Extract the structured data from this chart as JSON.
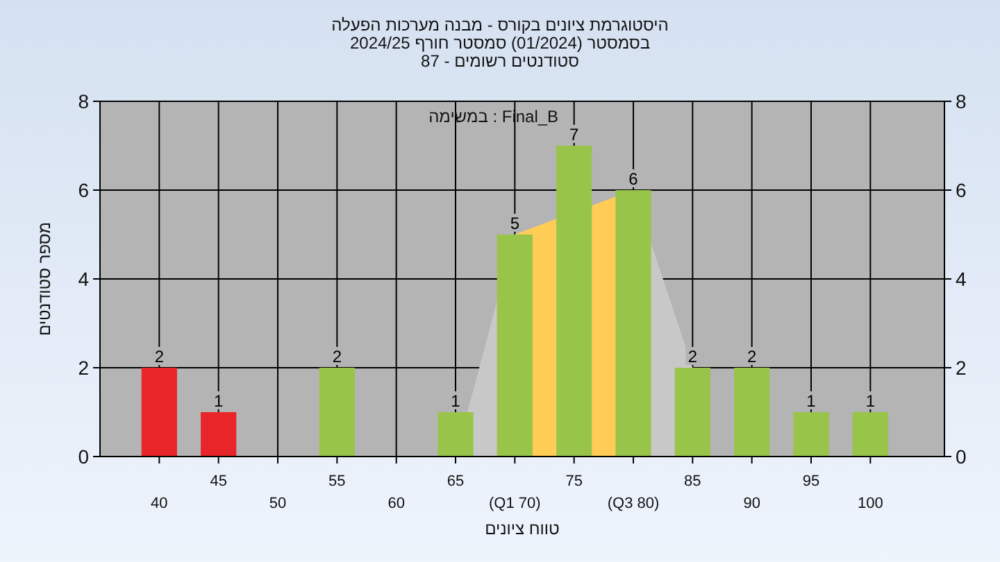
{
  "chart_data": {
    "type": "bar",
    "title": "היסטוגרמת ציונים בקורס - מבנה מערכות הפעלה",
    "subtitle": "בסמסטר  (01/2024)  סמסטר חורף 2024/25",
    "annotations": [
      "סטודנטים רשומים - 87",
      "Final_B : במשימה"
    ],
    "xlabel": "טווח ציונים",
    "ylabel": "מספר סטודנטים",
    "categories": [
      "40",
      "45",
      "50",
      "55",
      "60",
      "65",
      "(Q1 70)",
      "75",
      "(Q3 80)",
      "85",
      "90",
      "95",
      "100"
    ],
    "series": [
      {
        "type": "area",
        "color": "#c8c8c8",
        "values": [
          null,
          null,
          null,
          null,
          null,
          0,
          5,
          null,
          6,
          2,
          null,
          null,
          null
        ]
      },
      {
        "type": "area",
        "color": "#ffcc55",
        "values": [
          null,
          null,
          null,
          null,
          null,
          null,
          5,
          null,
          6,
          null,
          null,
          null,
          null
        ]
      },
      {
        "type": "bar",
        "colors": [
          "#e8262a",
          "#e8262a",
          "#99c44a",
          "#99c44a",
          "#99c44a",
          "#99c44a",
          "#99c44a",
          "#99c44a",
          "#99c44a",
          "#99c44a",
          "#99c44a",
          "#99c44a",
          "#99c44a"
        ],
        "values": [
          2,
          1,
          0,
          2,
          0,
          1,
          5,
          7,
          6,
          2,
          2,
          1,
          1
        ],
        "value_labels": [
          "2",
          "1",
          null,
          "2",
          null,
          "1",
          "5",
          "7",
          "6",
          "2",
          "2",
          "1",
          "1"
        ]
      }
    ],
    "ylim": [
      0,
      8
    ],
    "yticks": [
      0,
      2,
      4,
      6,
      8
    ],
    "y2lim": [
      0,
      8
    ],
    "y2ticks": [
      0,
      2,
      4,
      6,
      8
    ],
    "grid": true
  }
}
